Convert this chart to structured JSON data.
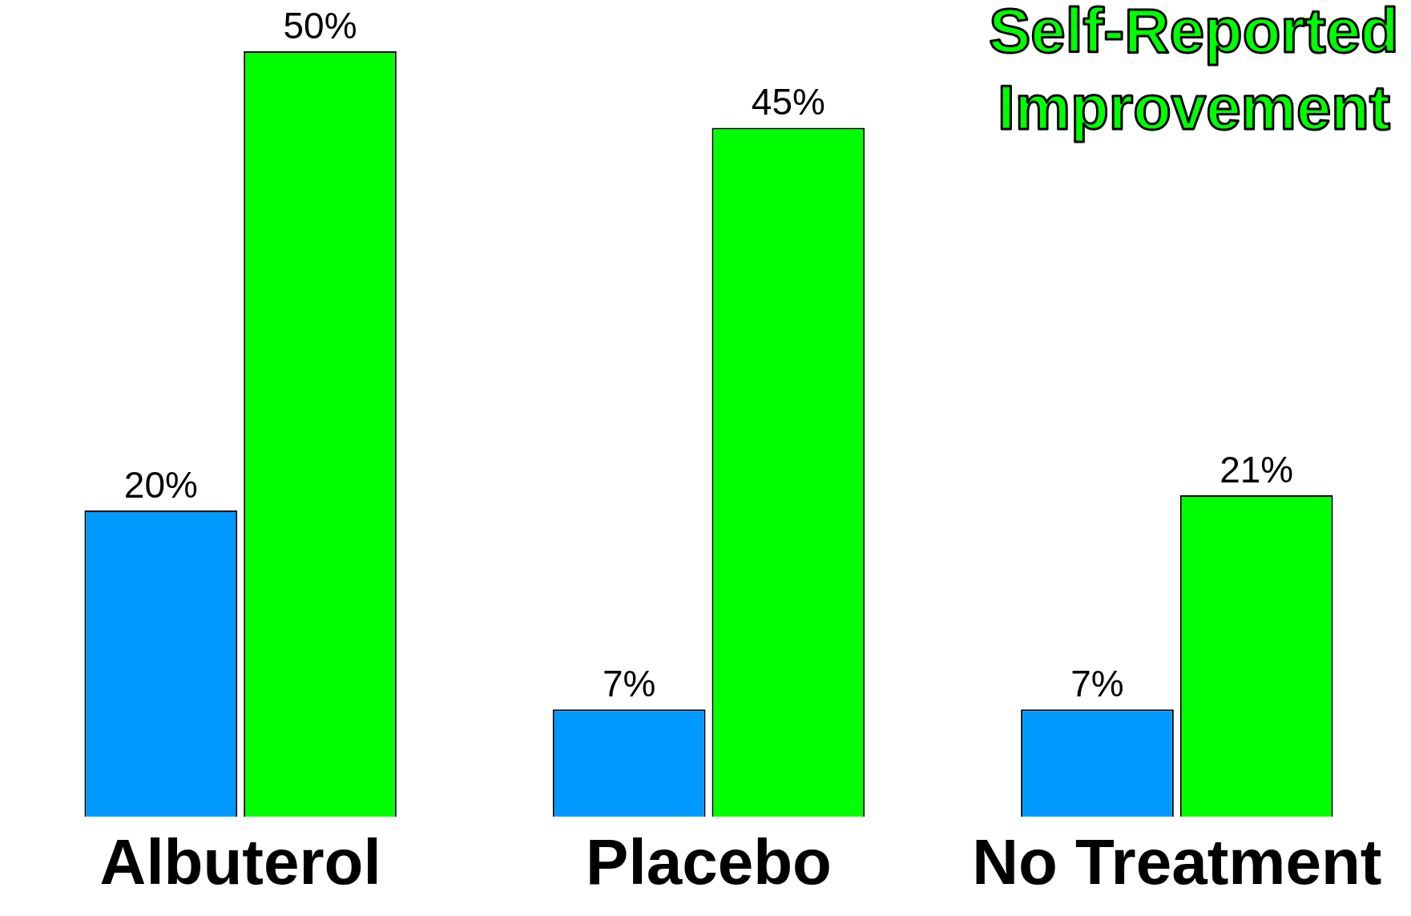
{
  "chart_data": {
    "type": "bar",
    "categories": [
      "Albuterol",
      "Placebo",
      "No Treatment"
    ],
    "series": [
      {
        "color": "#0099ff",
        "values": [
          20,
          7,
          7
        ],
        "value_labels": [
          "20%",
          "7%",
          "7%"
        ]
      },
      {
        "name": "Self-Reported Improvement",
        "color": "#00ff00",
        "values": [
          50,
          45,
          21
        ],
        "value_labels": [
          "50%",
          "45%",
          "21%"
        ]
      }
    ],
    "relative": false,
    "grid": false,
    "legend": "top right"
  }
}
